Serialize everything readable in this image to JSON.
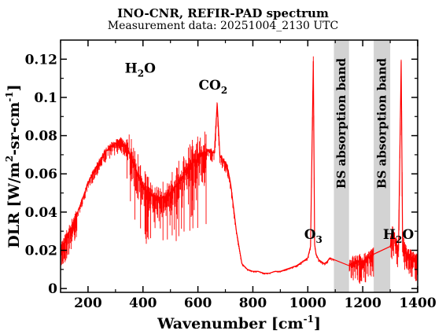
{
  "chart_data": {
    "type": "line",
    "title": "INO-CNR, REFIR-PAD spectrum",
    "subtitle": "Measurement data: 20251004_2130 UTC",
    "xlabel": {
      "text": "Wavenumber [cm",
      "sup": "-1",
      "after": "]"
    },
    "ylabel": {
      "text": "DLR [W/m",
      "sup1": "2",
      "mid": "-sr-cm",
      "sup2": "-1",
      "after": "]"
    },
    "xlim": [
      100,
      1400
    ],
    "ylim": [
      -0.002,
      0.13
    ],
    "xticks": [
      200,
      400,
      600,
      800,
      1000,
      1200,
      1400
    ],
    "xtick_labels": [
      "200",
      "400",
      "600",
      "800",
      "1000",
      "1200",
      "1400"
    ],
    "yticks": [
      0,
      0.02,
      0.04,
      0.06,
      0.08,
      0.1,
      0.12
    ],
    "ytick_labels": [
      "0",
      "0.02",
      "0.04",
      "0.06",
      "0.08",
      "0.1",
      "0.12"
    ],
    "series_color": "#ff0000",
    "band_color": "#d3d3d3",
    "series": [
      {
        "x": [
          100,
          120,
          140,
          160,
          180,
          200,
          220,
          240,
          260,
          280,
          300,
          320,
          340,
          360,
          380,
          400,
          420,
          440,
          460,
          480,
          500,
          520,
          540,
          560,
          580,
          600,
          620,
          640,
          660,
          670,
          680,
          700,
          710,
          720,
          740,
          760,
          780,
          800,
          820,
          840,
          860,
          880,
          900,
          920,
          940,
          960,
          980,
          1000,
          1010,
          1020,
          1025,
          1030,
          1040,
          1050,
          1060,
          1070,
          1080,
          1150,
          1160,
          1180,
          1200,
          1220,
          1240,
          1300,
          1310,
          1320,
          1330,
          1340,
          1345,
          1350,
          1360,
          1380,
          1400
        ],
        "y": [
          0.02,
          0.026,
          0.032,
          0.039,
          0.047,
          0.055,
          0.061,
          0.066,
          0.071,
          0.074,
          0.076,
          0.077,
          0.074,
          0.068,
          0.06,
          0.054,
          0.05,
          0.048,
          0.047,
          0.048,
          0.05,
          0.054,
          0.058,
          0.062,
          0.066,
          0.068,
          0.071,
          0.072,
          0.071,
          0.097,
          0.069,
          0.066,
          0.062,
          0.054,
          0.03,
          0.013,
          0.01,
          0.009,
          0.009,
          0.008,
          0.008,
          0.009,
          0.009,
          0.01,
          0.011,
          0.012,
          0.014,
          0.016,
          0.022,
          0.119,
          0.023,
          0.018,
          0.015,
          0.014,
          0.013,
          0.014,
          0.016,
          0.012,
          0.013,
          0.014,
          0.014,
          0.016,
          0.018,
          0.022,
          0.03,
          0.024,
          0.02,
          0.119,
          0.025,
          0.022,
          0.018,
          0.016,
          0.014
        ]
      }
    ],
    "bands": [
      {
        "x0": 1095,
        "x1": 1150,
        "label": "BS absorption band"
      },
      {
        "x0": 1240,
        "x1": 1300,
        "label": "BS absorption band"
      }
    ],
    "annotations": [
      {
        "text": "H",
        "sub": "2",
        "after": "O",
        "x": 390,
        "y": 0.113
      },
      {
        "text": "CO",
        "sub": "2",
        "after": "",
        "x": 655,
        "y": 0.104
      },
      {
        "text": "O",
        "sub": "3",
        "after": "",
        "x": 1020,
        "y": 0.026
      },
      {
        "text": "H",
        "sub": "2",
        "after": "O",
        "x": 1330,
        "y": 0.026
      }
    ]
  }
}
